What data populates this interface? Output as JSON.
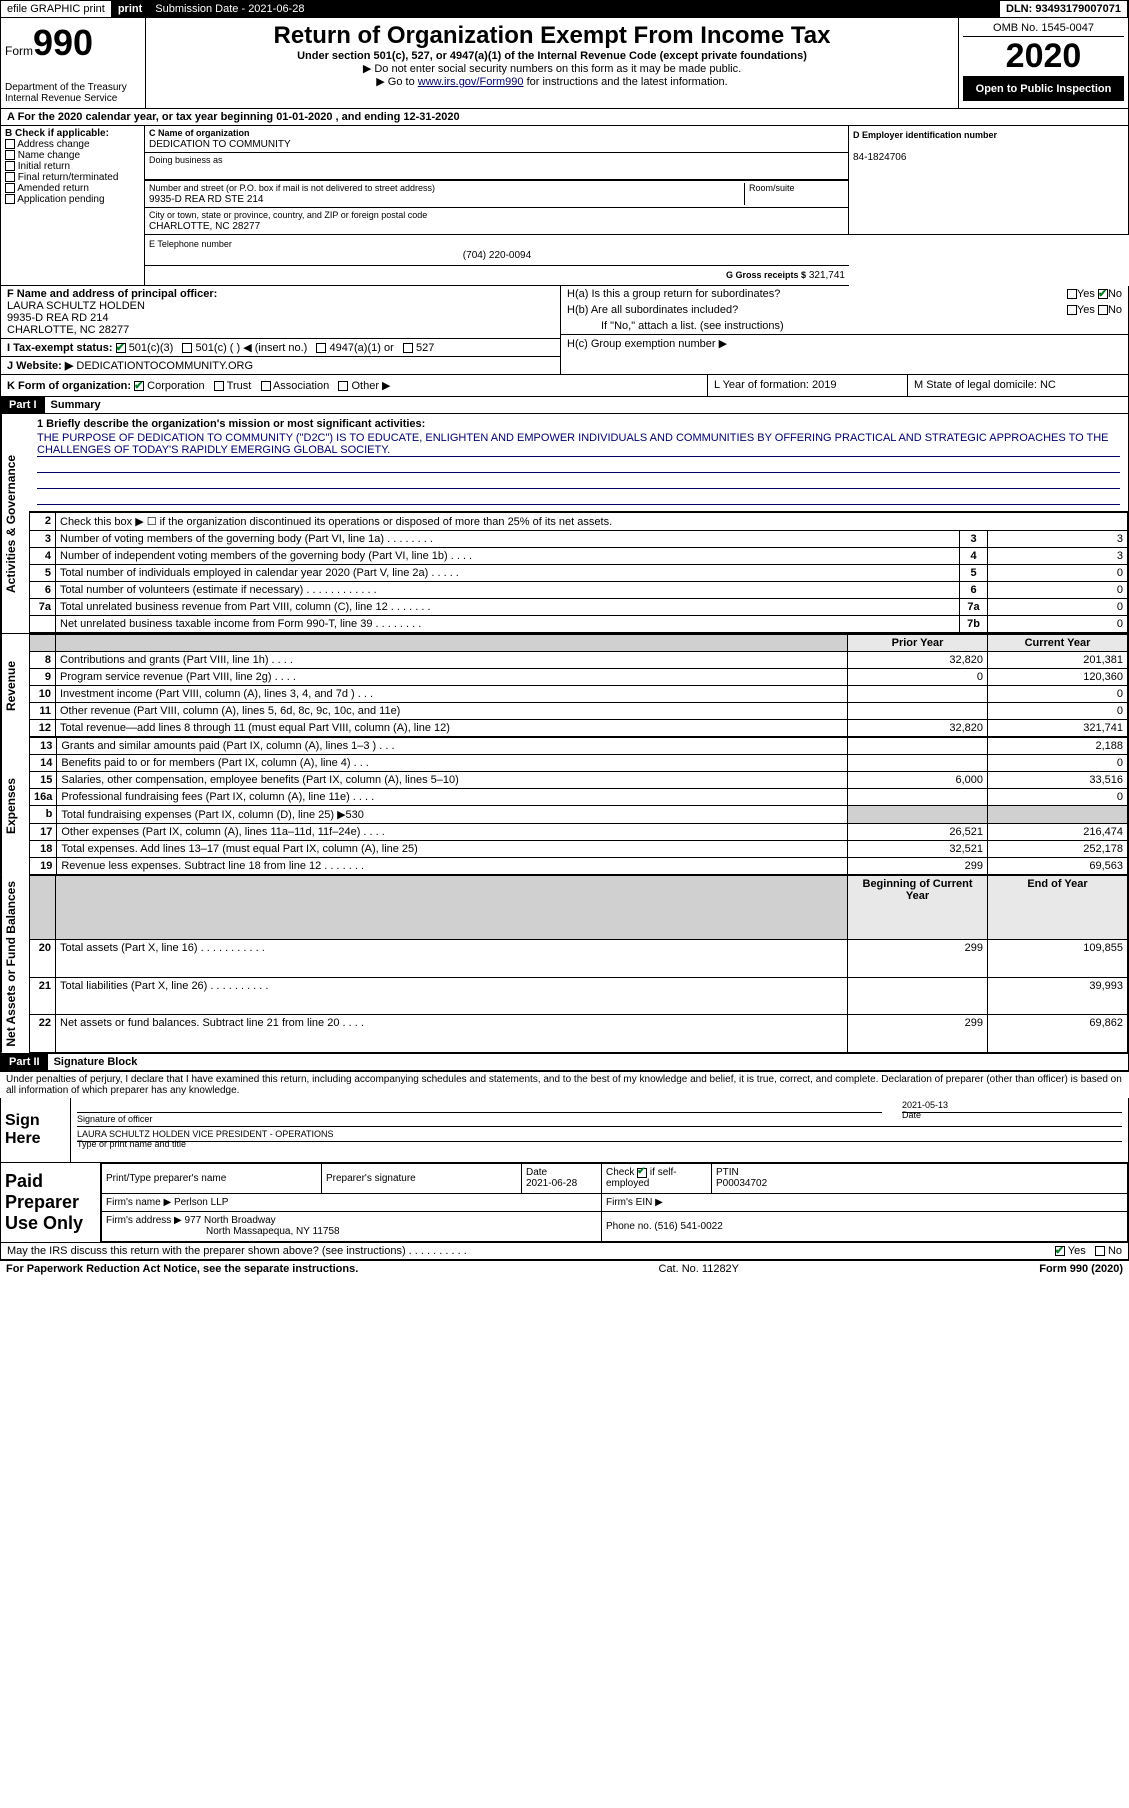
{
  "topbar": {
    "efile": "efile GRAPHIC print",
    "sub_label": "Submission Date - 2021-06-28",
    "dln": "DLN: 93493179007071"
  },
  "header": {
    "form_word": "Form",
    "form_num": "990",
    "dept": "Department of the Treasury\nInternal Revenue Service",
    "title": "Return of Organization Exempt From Income Tax",
    "subtitle": "Under section 501(c), 527, or 4947(a)(1) of the Internal Revenue Code (except private foundations)",
    "instr1": "▶ Do not enter social security numbers on this form as it may be made public.",
    "instr2_pre": "▶ Go to ",
    "instr2_link": "www.irs.gov/Form990",
    "instr2_post": " for instructions and the latest information.",
    "omb": "OMB No. 1545-0047",
    "year": "2020",
    "openpub": "Open to Public Inspection"
  },
  "rowA": "A For the 2020 calendar year, or tax year beginning 01-01-2020     , and ending 12-31-2020",
  "B": {
    "label": "B Check if applicable:",
    "opts": [
      "Address change",
      "Name change",
      "Initial return",
      "Final return/terminated",
      "Amended return",
      "Application pending"
    ]
  },
  "C": {
    "name_label": "C Name of organization",
    "name": "DEDICATION TO COMMUNITY",
    "dba_label": "Doing business as",
    "dba": "",
    "street_label": "Number and street (or P.O. box if mail is not delivered to street address)",
    "room_label": "Room/suite",
    "street": "9935-D REA RD STE 214",
    "city_label": "City or town, state or province, country, and ZIP or foreign postal code",
    "city": "CHARLOTTE, NC  28277"
  },
  "D": {
    "label": "D Employer identification number",
    "value": "84-1824706"
  },
  "E": {
    "label": "E Telephone number",
    "value": "(704) 220-0094"
  },
  "G": {
    "label": "G Gross receipts $",
    "value": "321,741"
  },
  "F": {
    "label": "F  Name and address of principal officer:",
    "name": "LAURA SCHULTZ HOLDEN",
    "addr1": "9935-D REA RD 214",
    "addr2": "CHARLOTTE, NC  28277"
  },
  "H": {
    "a": "H(a)  Is this a group return for subordinates?",
    "a_yes": "Yes",
    "a_no": "No",
    "b": "H(b)  Are all subordinates included?",
    "b_yes": "Yes",
    "b_no": "No",
    "note": "If \"No,\" attach a list. (see instructions)",
    "c": "H(c)  Group exemption number ▶"
  },
  "I": {
    "label": "I    Tax-exempt status:",
    "opts": [
      "501(c)(3)",
      "501(c) (  ) ◀ (insert no.)",
      "4947(a)(1) or",
      "527"
    ]
  },
  "J": {
    "label": "J   Website: ▶",
    "value": "DEDICATIONTOCOMMUNITY.ORG"
  },
  "K": {
    "label": "K Form of organization:",
    "opts": [
      "Corporation",
      "Trust",
      "Association",
      "Other ▶"
    ],
    "L": "L Year of formation: 2019",
    "M": "M State of legal domicile: NC"
  },
  "partI": {
    "num": "Part I",
    "title": "Summary"
  },
  "mission": {
    "q": "1  Briefly describe the organization's mission or most significant activities:",
    "text": "THE PURPOSE OF DEDICATION TO COMMUNITY (\"D2C\") IS TO EDUCATE, ENLIGHTEN AND EMPOWER INDIVIDUALS AND COMMUNITIES BY OFFERING PRACTICAL AND STRATEGIC APPROACHES TO THE CHALLENGES OF TODAY'S RAPIDLY EMERGING GLOBAL SOCIETY."
  },
  "gov_rows": [
    {
      "n": "2",
      "lbl": "Check this box ▶ ☐  if the organization discontinued its operations or disposed of more than 25% of its net assets.",
      "box": "",
      "val": ""
    },
    {
      "n": "3",
      "lbl": "Number of voting members of the governing body (Part VI, line 1a)  .   .   .   .   .   .   .   .",
      "box": "3",
      "val": "3"
    },
    {
      "n": "4",
      "lbl": "Number of independent voting members of the governing body (Part VI, line 1b)  .   .   .   .",
      "box": "4",
      "val": "3"
    },
    {
      "n": "5",
      "lbl": "Total number of individuals employed in calendar year 2020 (Part V, line 2a)  .   .   .   .   .",
      "box": "5",
      "val": "0"
    },
    {
      "n": "6",
      "lbl": "Total number of volunteers (estimate if necessary)   .   .   .   .   .   .   .   .   .   .   .   .",
      "box": "6",
      "val": "0"
    },
    {
      "n": "7a",
      "lbl": "Total unrelated business revenue from Part VIII, column (C), line 12  .   .   .   .   .   .   .",
      "box": "7a",
      "val": "0"
    },
    {
      "n": "",
      "lbl": "Net unrelated business taxable income from Form 990-T, line 39   .   .   .   .   .   .   .   .",
      "box": "7b",
      "val": "0"
    }
  ],
  "rev_hdr": {
    "prior": "Prior Year",
    "curr": "Current Year"
  },
  "rev_rows": [
    {
      "n": "8",
      "lbl": "Contributions and grants (Part VIII, line 1h)   .   .   .   .",
      "p": "32,820",
      "c": "201,381"
    },
    {
      "n": "9",
      "lbl": "Program service revenue (Part VIII, line 2g)   .   .   .   .",
      "p": "0",
      "c": "120,360"
    },
    {
      "n": "10",
      "lbl": "Investment income (Part VIII, column (A), lines 3, 4, and 7d )   .   .   .",
      "p": "",
      "c": "0"
    },
    {
      "n": "11",
      "lbl": "Other revenue (Part VIII, column (A), lines 5, 6d, 8c, 9c, 10c, and 11e)",
      "p": "",
      "c": "0"
    },
    {
      "n": "12",
      "lbl": "Total revenue—add lines 8 through 11 (must equal Part VIII, column (A), line 12)",
      "p": "32,820",
      "c": "321,741"
    }
  ],
  "exp_rows": [
    {
      "n": "13",
      "lbl": "Grants and similar amounts paid (Part IX, column (A), lines 1–3 )   .   .   .",
      "p": "",
      "c": "2,188"
    },
    {
      "n": "14",
      "lbl": "Benefits paid to or for members (Part IX, column (A), line 4)   .   .   .",
      "p": "",
      "c": "0"
    },
    {
      "n": "15",
      "lbl": "Salaries, other compensation, employee benefits (Part IX, column (A), lines 5–10)",
      "p": "6,000",
      "c": "33,516"
    },
    {
      "n": "16a",
      "lbl": "Professional fundraising fees (Part IX, column (A), line 11e)   .   .   .   .",
      "p": "",
      "c": "0"
    },
    {
      "n": "b",
      "lbl": "Total fundraising expenses (Part IX, column (D), line 25) ▶530",
      "p": "shade",
      "c": "shade"
    },
    {
      "n": "17",
      "lbl": "Other expenses (Part IX, column (A), lines 11a–11d, 11f–24e)   .   .   .   .",
      "p": "26,521",
      "c": "216,474"
    },
    {
      "n": "18",
      "lbl": "Total expenses. Add lines 13–17 (must equal Part IX, column (A), line 25)",
      "p": "32,521",
      "c": "252,178"
    },
    {
      "n": "19",
      "lbl": "Revenue less expenses. Subtract line 18 from line 12 .   .   .   .   .   .   .",
      "p": "299",
      "c": "69,563"
    }
  ],
  "na_hdr": {
    "beg": "Beginning of Current Year",
    "end": "End of Year"
  },
  "na_rows": [
    {
      "n": "20",
      "lbl": "Total assets (Part X, line 16)  .   .   .   .   .   .   .   .   .   .   .",
      "p": "299",
      "c": "109,855"
    },
    {
      "n": "21",
      "lbl": "Total liabilities (Part X, line 26)  .   .   .   .   .   .   .   .   .   .",
      "p": "",
      "c": "39,993"
    },
    {
      "n": "22",
      "lbl": "Net assets or fund balances. Subtract line 21 from line 20  .   .   .   .",
      "p": "299",
      "c": "69,862"
    }
  ],
  "partII": {
    "num": "Part II",
    "title": "Signature Block"
  },
  "penalty": "Under penalties of perjury, I declare that I have examined this return, including accompanying schedules and statements, and to the best of my knowledge and belief, it is true, correct, and complete. Declaration of preparer (other than officer) is based on all information of which preparer has any knowledge.",
  "sign": {
    "here": "Sign Here",
    "sig_label": "Signature of officer",
    "date_label": "Date",
    "date": "2021-05-13",
    "typed": "LAURA SCHULTZ HOLDEN  VICE PRESIDENT - OPERATIONS",
    "typed_label": "Type or print name and title"
  },
  "paid": {
    "label": "Paid Preparer Use Only",
    "h1": "Print/Type preparer's name",
    "h2": "Preparer's signature",
    "h3": "Date",
    "date": "2021-06-28",
    "h4_pre": "Check",
    "h4_post": "if self-employed",
    "h5": "PTIN",
    "ptin": "P00034702",
    "firm_label": "Firm's name    ▶",
    "firm": "Perlson LLP",
    "ein_label": "Firm's EIN ▶",
    "addr_label": "Firm's address ▶",
    "addr1": "977 North Broadway",
    "addr2": "North Massapequa, NY  11758",
    "phone_label": "Phone no.",
    "phone": "(516) 541-0022"
  },
  "discuss": {
    "q": "May the IRS discuss this return with the preparer shown above? (see instructions)   .   .   .   .   .   .   .   .   .   .",
    "yes": "Yes",
    "no": "No"
  },
  "footer": {
    "l": "For Paperwork Reduction Act Notice, see the separate instructions.",
    "m": "Cat. No. 11282Y",
    "r": "Form 990 (2020)"
  },
  "vtabs": {
    "gov": "Activities & Governance",
    "rev": "Revenue",
    "exp": "Expenses",
    "na": "Net Assets or Fund Balances"
  }
}
